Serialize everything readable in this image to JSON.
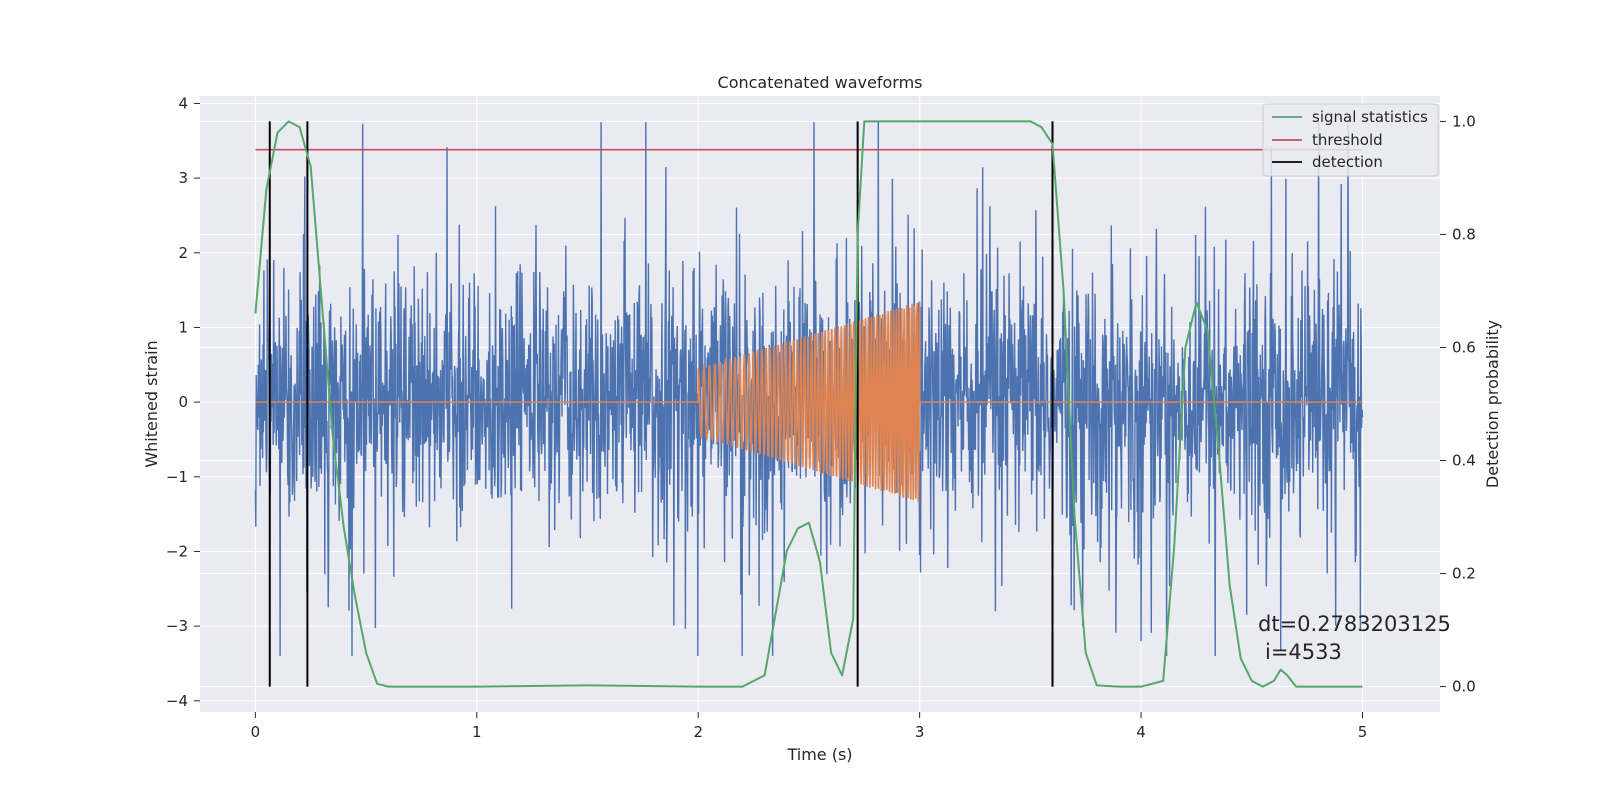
{
  "chart_data": {
    "type": "line",
    "title": "Concatenated waveforms",
    "xlabel": "Time (s)",
    "ylabel": "Whitened strain",
    "y2label": "Detection probability",
    "xlim": [
      -0.25,
      5.35
    ],
    "ylim": [
      -4.15,
      4.1
    ],
    "y2lim": [
      -0.045,
      1.045
    ],
    "x_ticks": [
      0,
      1,
      2,
      3,
      4,
      5
    ],
    "y_ticks": [
      -4,
      -3,
      -2,
      -1,
      0,
      1,
      2,
      3,
      4
    ],
    "y2_ticks": [
      0.0,
      0.2,
      0.4,
      0.6,
      0.8,
      1.0
    ],
    "x_tick_labels": [
      "0",
      "1",
      "2",
      "3",
      "4",
      "5"
    ],
    "y_tick_labels": [
      "−4",
      "−3",
      "−2",
      "−1",
      "0",
      "1",
      "2",
      "3",
      "4"
    ],
    "y2_tick_labels": [
      "0.0",
      "0.2",
      "0.4",
      "0.6",
      "0.8",
      "1.0"
    ],
    "grid": true,
    "legend": {
      "position": "top-right",
      "entries": [
        "signal statistics",
        "threshold",
        "detection"
      ]
    },
    "colors": {
      "strain": "#4c72b0",
      "template": "#dd8452",
      "statistics": "#55a868",
      "threshold": "#c44e52",
      "detection": "#000000",
      "background": "#eaeaf2"
    },
    "series": [
      {
        "name": "signal statistics",
        "axis": "right",
        "x": [
          0.0,
          0.05,
          0.1,
          0.15,
          0.2,
          0.25,
          0.3,
          0.35,
          0.4,
          0.45,
          0.5,
          0.55,
          0.6,
          1.0,
          1.5,
          2.0,
          2.2,
          2.3,
          2.35,
          2.4,
          2.45,
          2.5,
          2.55,
          2.6,
          2.65,
          2.7,
          2.72,
          2.75,
          2.8,
          3.0,
          3.5,
          3.55,
          3.6,
          3.65,
          3.7,
          3.75,
          3.8,
          3.9,
          4.0,
          4.1,
          4.15,
          4.2,
          4.25,
          4.3,
          4.35,
          4.4,
          4.45,
          4.5,
          4.55,
          4.6,
          4.63,
          4.66,
          4.7,
          4.8,
          4.9,
          5.0
        ],
        "values": [
          0.66,
          0.88,
          0.98,
          1.0,
          0.99,
          0.92,
          0.68,
          0.44,
          0.28,
          0.16,
          0.06,
          0.005,
          0.0,
          0.0,
          0.002,
          0.0,
          0.0,
          0.02,
          0.13,
          0.24,
          0.28,
          0.29,
          0.22,
          0.06,
          0.02,
          0.12,
          0.8,
          1.0,
          1.0,
          1.0,
          1.0,
          0.99,
          0.96,
          0.7,
          0.3,
          0.06,
          0.002,
          0.0,
          0.0,
          0.01,
          0.25,
          0.6,
          0.68,
          0.63,
          0.42,
          0.18,
          0.05,
          0.01,
          0.0,
          0.01,
          0.03,
          0.02,
          0.0,
          0.0,
          0.0,
          0.0
        ]
      },
      {
        "name": "threshold",
        "axis": "right",
        "x": [
          0,
          5
        ],
        "values": [
          0.95,
          0.95
        ]
      },
      {
        "name": "detection",
        "axis": "right",
        "x": [
          0.065,
          0.235,
          2.72,
          3.6
        ],
        "values": [
          1.0,
          1.0,
          1.0,
          1.0
        ]
      }
    ],
    "strain": {
      "x_range": [
        0,
        5
      ],
      "noise_amplitude": 1.0,
      "peak_range": [
        -3.4,
        3.75
      ]
    },
    "template": {
      "x_range": [
        2.0,
        3.0
      ],
      "amplitude_start": 0.45,
      "amplitude_end": 1.35,
      "baseline": 0.0
    },
    "annotation": {
      "line1": "dt=0.2783203125",
      "line2": "i=4533"
    }
  }
}
